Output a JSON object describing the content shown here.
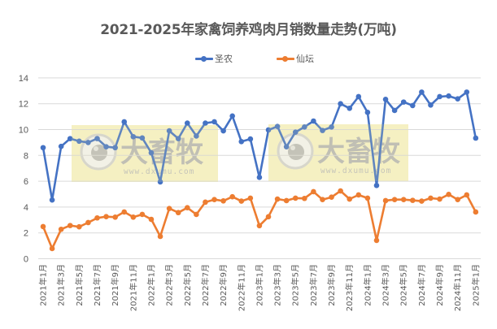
{
  "chart_data": {
    "type": "line",
    "title": "2021-2025年家禽饲养鸡肉月销数量走势(万吨)",
    "xlabel": "",
    "ylabel": "",
    "ylim": [
      0,
      14
    ],
    "yticks": [
      0,
      2,
      4,
      6,
      8,
      10,
      12,
      14
    ],
    "grid": true,
    "legend_position": "top",
    "x": [
      "2021年1月",
      "2021年2月",
      "2021年3月",
      "2021年4月",
      "2021年5月",
      "2021年6月",
      "2021年7月",
      "2021年8月",
      "2021年9月",
      "2021年10月",
      "2021年11月",
      "2021年12月",
      "2022年1月",
      "2022年2月",
      "2022年3月",
      "2022年4月",
      "2022年5月",
      "2022年6月",
      "2022年7月",
      "2022年8月",
      "2022年9月",
      "2022年10月",
      "2022年11月",
      "2022年12月",
      "2023年1月",
      "2023年2月",
      "2023年3月",
      "2023年4月",
      "2023年5月",
      "2023年6月",
      "2023年7月",
      "2023年8月",
      "2023年9月",
      "2023年10月",
      "2023年11月",
      "2023年12月",
      "2024年1月",
      "2024年2月",
      "2024年3月",
      "2024年4月",
      "2024年5月",
      "2024年6月",
      "2024年7月",
      "2024年8月",
      "2024年9月",
      "2024年10月",
      "2024年11月",
      "2024年12月",
      "2025年1月"
    ],
    "xtick_labels": [
      "2021年1月",
      "2021年3月",
      "2021年5月",
      "2021年7月",
      "2021年9月",
      "2021年11月",
      "2022年1月",
      "2022年3月",
      "2022年5月",
      "2022年7月",
      "2022年9月",
      "2022年11月",
      "2023年1月",
      "2023年3月",
      "2023年5月",
      "2023年7月",
      "2023年9月",
      "2023年11月",
      "2024年1月",
      "2024年3月",
      "2024年5月",
      "2024年7月",
      "2024年9月",
      "2024年11月",
      "2025年1月"
    ],
    "series": [
      {
        "name": "圣农",
        "color": "#4472C4",
        "values": [
          8.6,
          4.55,
          8.7,
          9.3,
          9.1,
          9.0,
          9.3,
          8.67,
          8.6,
          10.6,
          9.45,
          9.35,
          8.2,
          5.95,
          9.9,
          9.3,
          10.5,
          9.5,
          10.5,
          10.6,
          9.9,
          11.05,
          9.07,
          9.27,
          6.3,
          9.97,
          10.24,
          8.67,
          9.8,
          10.2,
          10.66,
          9.93,
          10.2,
          12.0,
          11.65,
          12.55,
          11.33,
          5.67,
          12.34,
          11.48,
          12.13,
          11.86,
          12.9,
          11.9,
          12.55,
          12.6,
          12.38,
          12.9,
          9.34
        ]
      },
      {
        "name": "仙坛",
        "color": "#ED7D31",
        "values": [
          2.49,
          0.79,
          2.28,
          2.57,
          2.47,
          2.8,
          3.16,
          3.26,
          3.22,
          3.62,
          3.22,
          3.43,
          3.05,
          1.73,
          3.89,
          3.57,
          3.95,
          3.43,
          4.38,
          4.58,
          4.48,
          4.8,
          4.46,
          4.69,
          2.56,
          3.25,
          4.62,
          4.5,
          4.69,
          4.67,
          5.19,
          4.58,
          4.77,
          5.25,
          4.62,
          4.94,
          4.69,
          1.42,
          4.5,
          4.58,
          4.58,
          4.52,
          4.46,
          4.69,
          4.62,
          4.98,
          4.58,
          4.94,
          3.62
        ]
      }
    ]
  },
  "legend": {
    "items": [
      {
        "label": "圣农",
        "color": "#4472C4"
      },
      {
        "label": "仙坛",
        "color": "#ED7D31"
      }
    ]
  },
  "watermark": {
    "brand": "大畜牧",
    "url": "www.dxumu.com"
  },
  "style": {
    "grid_color": "#D9D9D9",
    "watermark_bg": "#F7F1BF"
  }
}
